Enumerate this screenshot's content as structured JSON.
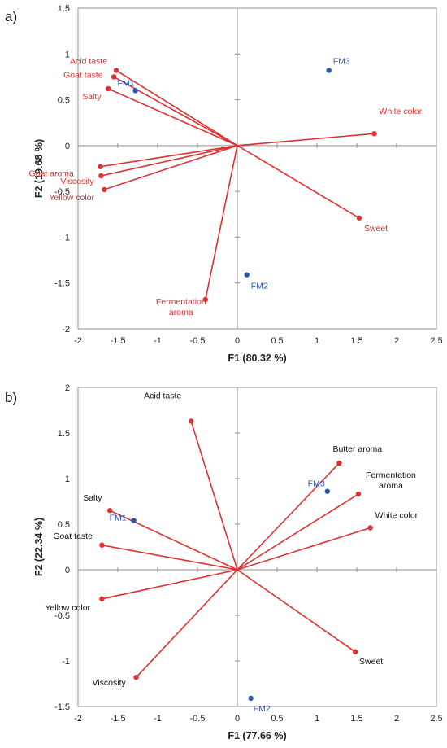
{
  "colors": {
    "loading": "#e03030",
    "product": "#2a55b0",
    "axis": "#909090",
    "frame": "#909090"
  },
  "chart_data": [
    {
      "type": "scatter",
      "panel_label": "a)",
      "xlabel": "F1 (80.32 %)",
      "ylabel": "F2 (19.68 %)",
      "xlim": [
        -2,
        2.5
      ],
      "ylim": [
        -2,
        1.5
      ],
      "xticks": [
        "-2",
        "-1.5",
        "-1",
        "-0.5",
        "0",
        "0.5",
        "1",
        "1.5",
        "2",
        "2.5"
      ],
      "yticks": [
        "-2",
        "-1.5",
        "-1",
        "-0.5",
        "0",
        "0.5",
        "1",
        "1.5"
      ],
      "label_color": "red",
      "loadings": [
        {
          "label": "Acid taste",
          "x": -1.52,
          "y": 0.82
        },
        {
          "label": "Goat taste",
          "x": -1.55,
          "y": 0.75
        },
        {
          "label": "Salty",
          "x": -1.62,
          "y": 0.62
        },
        {
          "label": "White color",
          "x": 1.72,
          "y": 0.13
        },
        {
          "label": "Goat aroma",
          "x": -1.72,
          "y": -0.23
        },
        {
          "label": "Viscosity",
          "x": -1.71,
          "y": -0.33
        },
        {
          "label": "Yellow color",
          "x": -1.67,
          "y": -0.48
        },
        {
          "label": "Sweet",
          "x": 1.53,
          "y": -0.79
        },
        {
          "label": "Fermentation aroma",
          "x": -0.4,
          "y": -1.68
        }
      ],
      "products": [
        {
          "label": "FM1",
          "x": -1.28,
          "y": 0.6
        },
        {
          "label": "FM2",
          "x": 0.12,
          "y": -1.41
        },
        {
          "label": "FM3",
          "x": 1.15,
          "y": 0.82
        }
      ]
    },
    {
      "type": "scatter",
      "panel_label": "b)",
      "xlabel": "F1 (77.66 %)",
      "ylabel": "F2 (22.34 %)",
      "xlim": [
        -2,
        2.5
      ],
      "ylim": [
        -1.5,
        2
      ],
      "xticks": [
        "-2",
        "-1.5",
        "-1",
        "-0.5",
        "0",
        "0.5",
        "1",
        "1.5",
        "2",
        "2.5"
      ],
      "yticks": [
        "-1.5",
        "-1",
        "-0.5",
        "0",
        "0.5",
        "1",
        "1.5",
        "2"
      ],
      "label_color": "black",
      "loadings": [
        {
          "label": "Acid taste",
          "x": -0.58,
          "y": 1.63
        },
        {
          "label": "Butter aroma",
          "x": 1.28,
          "y": 1.17
        },
        {
          "label": "Fermentation aroma",
          "x": 1.52,
          "y": 0.83
        },
        {
          "label": "White color",
          "x": 1.67,
          "y": 0.46
        },
        {
          "label": "Salty",
          "x": -1.6,
          "y": 0.65
        },
        {
          "label": "Goat taste",
          "x": -1.7,
          "y": 0.27
        },
        {
          "label": "Yellow color",
          "x": -1.7,
          "y": -0.32
        },
        {
          "label": "Sweet",
          "x": 1.48,
          "y": -0.9
        },
        {
          "label": "Viscosity",
          "x": -1.27,
          "y": -1.18
        }
      ],
      "products": [
        {
          "label": "FM1",
          "x": -1.3,
          "y": 0.54
        },
        {
          "label": "FM2",
          "x": 0.17,
          "y": -1.41
        },
        {
          "label": "FM3",
          "x": 1.13,
          "y": 0.86
        }
      ]
    }
  ]
}
